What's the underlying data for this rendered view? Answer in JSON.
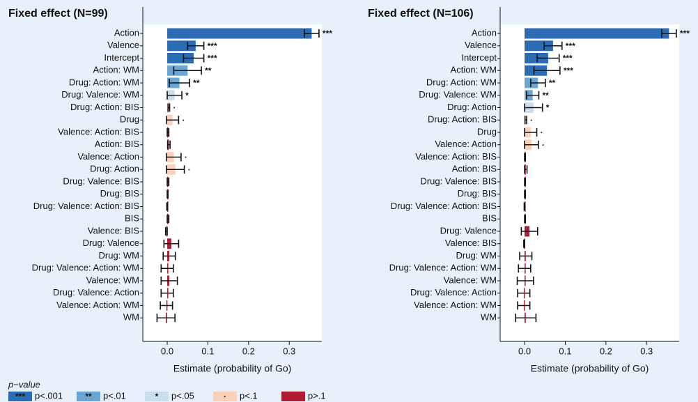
{
  "chart_data": [
    {
      "type": "bar",
      "orientation": "horizontal",
      "title": "Fixed effect (N=99)",
      "x_label": "Estimate (probability of Go)",
      "categories": [
        "Action",
        "Valence",
        "Intercept",
        "Action: WM",
        "Drug: Action: WM",
        "Drug: Valence: WM",
        "Drug: Action: BIS",
        "Drug",
        "Valence: Action: BIS",
        "Action: BIS",
        "Valence: Action",
        "Drug: Action",
        "Drug: Valence: BIS",
        "Drug: BIS",
        "Drug: Valence: Action: BIS",
        "BIS",
        "Valence: BIS",
        "Drug: Valence",
        "Drug: WM",
        "Drug: Valence: Action: WM",
        "Valence: WM",
        "Drug: Valence: Action",
        "Valence: Action: WM",
        "WM"
      ],
      "values": [
        0.355,
        0.07,
        0.065,
        0.05,
        0.03,
        0.018,
        0.004,
        0.013,
        0.002,
        0.004,
        0.016,
        0.02,
        0.002,
        0.001,
        0.0,
        0.002,
        -0.002,
        0.01,
        0.005,
        0.0,
        0.005,
        0.0,
        -0.002,
        -0.003
      ],
      "errors": [
        0.018,
        0.02,
        0.025,
        0.034,
        0.025,
        0.018,
        0.002,
        0.015,
        0.002,
        0.003,
        0.018,
        0.022,
        0.002,
        0.001,
        0.001,
        0.002,
        0.002,
        0.018,
        0.015,
        0.015,
        0.02,
        0.015,
        0.015,
        0.022
      ],
      "annotations": [
        "***",
        "***",
        "***",
        "**",
        "**",
        "*",
        "·",
        "·",
        null,
        null,
        "·",
        "·",
        null,
        null,
        null,
        null,
        null,
        null,
        null,
        null,
        null,
        null,
        null,
        null
      ],
      "colors": [
        "#2b6cb3",
        "#2b6cb3",
        "#2b6cb3",
        "#6aa6d4",
        "#6aa6d4",
        "#c9dff0",
        "#fbd1bb",
        "#fbd1bb",
        "#b01b34",
        "#b01b34",
        "#fbd1bb",
        "#fbd1bb",
        "#b01b34",
        "#b01b34",
        "#b01b34",
        "#b01b34",
        "#b01b34",
        "#b01b34",
        "#b01b34",
        "#b01b34",
        "#b01b34",
        "#b01b34",
        "#b01b34",
        "#b01b34"
      ],
      "xlim": [
        -0.06,
        0.38
      ],
      "xticks": [
        {
          "value": 0,
          "label": "0.0"
        },
        0.1,
        0.2,
        0.3
      ]
    },
    {
      "type": "bar",
      "orientation": "horizontal",
      "title": "Fixed effect (N=106)",
      "x_label": "Estimate (probability of Go)",
      "categories": [
        "Action",
        "Valence",
        "Intercept",
        "Action: WM",
        "Drug: Action: WM",
        "Drug: Valence: WM",
        "Drug: Action",
        "Drug: Action: BIS",
        "Drug",
        "Valence: Action",
        "Valence: Action: BIS",
        "Action: BIS",
        "Drug: Valence: BIS",
        "Drug: BIS",
        "Drug: Valence: Action: BIS",
        "BIS",
        "Drug: Valence",
        "Valence: BIS",
        "Drug: WM",
        "Drug: Valence: Action: WM",
        "Valence: WM",
        "Drug: Valence: Action",
        "Valence: Action: WM",
        "WM"
      ],
      "values": [
        0.355,
        0.07,
        0.058,
        0.055,
        0.033,
        0.02,
        0.022,
        0.003,
        0.015,
        0.017,
        0.001,
        0.003,
        0.001,
        0.001,
        0.0,
        0.001,
        0.012,
        -0.001,
        0.003,
        0.0,
        0.002,
        -0.002,
        -0.002,
        0.003
      ],
      "errors": [
        0.018,
        0.022,
        0.027,
        0.032,
        0.018,
        0.015,
        0.022,
        0.002,
        0.015,
        0.017,
        0.001,
        0.003,
        0.001,
        0.001,
        0.001,
        0.001,
        0.02,
        0.001,
        0.015,
        0.015,
        0.02,
        0.015,
        0.015,
        0.025
      ],
      "annotations": [
        "***",
        "***",
        "***",
        "***",
        "**",
        "**",
        "*",
        "·",
        "·",
        "·",
        null,
        null,
        null,
        null,
        null,
        null,
        null,
        null,
        null,
        null,
        null,
        null,
        null,
        null
      ],
      "colors": [
        "#2b6cb3",
        "#2b6cb3",
        "#2b6cb3",
        "#2b6cb3",
        "#6aa6d4",
        "#6aa6d4",
        "#c9dff0",
        "#fbd1bb",
        "#fbd1bb",
        "#fbd1bb",
        "#b01b34",
        "#b01b34",
        "#b01b34",
        "#b01b34",
        "#b01b34",
        "#b01b34",
        "#b01b34",
        "#b01b34",
        "#b01b34",
        "#b01b34",
        "#b01b34",
        "#b01b34",
        "#b01b34",
        "#b01b34"
      ],
      "xlim": [
        -0.06,
        0.38
      ],
      "xticks": [
        {
          "value": 0,
          "label": "0.0"
        },
        0.1,
        0.2,
        0.3
      ]
    }
  ],
  "legend": {
    "title": "p−value",
    "entries": [
      {
        "symbol": "***",
        "label": "p<.001",
        "color": "#2b6cb3"
      },
      {
        "symbol": "**",
        "label": "p<.01",
        "color": "#6aa6d4"
      },
      {
        "symbol": "*",
        "label": "p<.05",
        "color": "#c9dff0"
      },
      {
        "symbol": "·",
        "label": "p<.1",
        "color": "#fbd1bb"
      },
      {
        "label": "p>.1",
        "color": "#b01b34"
      }
    ]
  }
}
